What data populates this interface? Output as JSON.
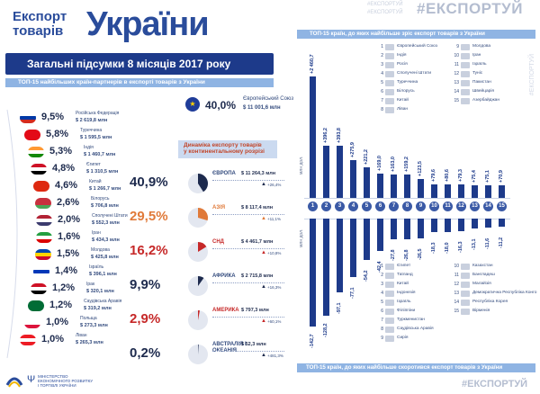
{
  "header": {
    "line1": "Експорт",
    "line2": "товарів",
    "title": "України"
  },
  "hashtag": {
    "faint1": "#ЕКСПОРТУЙ",
    "faint2": "#ЕКСПОРТУЙ",
    "main": "#ЕКСПОРТУЙ",
    "bottom": "#ЕКСПОРТУЙ",
    "vertical": "#ЕКСПОРТУЙ"
  },
  "summary_banner": "Загальні підсумки 8 місяців 2017 року",
  "top15_partners_title": "ТОП-15 найбільших країн-партнерів в експорті товарів з України",
  "eu": {
    "pct": "40,0%",
    "name": "Європейський Союз",
    "amount": "$ 11 001,6 млн"
  },
  "partners": [
    {
      "pct": "9,5%",
      "name": "Російська Федерація",
      "amount": "$ 2 619,8 млн",
      "c1": "#ffffff",
      "c2": "#0039a6",
      "c3": "#d52b1e"
    },
    {
      "pct": "5,8%",
      "name": "Туреччина",
      "amount": "$ 1 595,5 млн",
      "c1": "#e30a17",
      "c2": "#e30a17",
      "c3": "#e30a17"
    },
    {
      "pct": "5,3%",
      "name": "Індія",
      "amount": "$ 1 460,7 млн",
      "c1": "#ff9933",
      "c2": "#ffffff",
      "c3": "#138808"
    },
    {
      "pct": "4,8%",
      "name": "Єгипет",
      "amount": "$ 1 310,5 млн",
      "c1": "#ce1126",
      "c2": "#ffffff",
      "c3": "#000000"
    },
    {
      "pct": "4,6%",
      "name": "Китай",
      "amount": "$ 1 266,7 млн",
      "c1": "#de2910",
      "c2": "#de2910",
      "c3": "#de2910"
    },
    {
      "pct": "2,6%",
      "name": "Білорусь",
      "amount": "$ 706,8 млн",
      "c1": "#c8313e",
      "c2": "#c8313e",
      "c3": "#4aa657"
    },
    {
      "pct": "2,0%",
      "name": "Сполучені Штати",
      "amount": "$ 552,3 млн",
      "c1": "#b22234",
      "c2": "#ffffff",
      "c3": "#3c3b6e"
    },
    {
      "pct": "1,6%",
      "name": "Іран",
      "amount": "$ 434,3 млн",
      "c1": "#239f40",
      "c2": "#ffffff",
      "c3": "#da0000"
    },
    {
      "pct": "1,5%",
      "name": "Молдова",
      "amount": "$ 425,8 млн",
      "c1": "#0046ae",
      "c2": "#ffd200",
      "c3": "#cc092f"
    },
    {
      "pct": "1,4%",
      "name": "Ізраїль",
      "amount": "$ 396,1 млн",
      "c1": "#ffffff",
      "c2": "#0038b8",
      "c3": "#ffffff"
    },
    {
      "pct": "1,2%",
      "name": "Ірак",
      "amount": "$ 320,1 млн",
      "c1": "#ce1126",
      "c2": "#ffffff",
      "c3": "#000000"
    },
    {
      "pct": "1,2%",
      "name": "Саудівська Аравія",
      "amount": "$ 319,2 млн",
      "c1": "#006c35",
      "c2": "#006c35",
      "c3": "#006c35"
    },
    {
      "pct": "1,0%",
      "name": "Польща",
      "amount": "$ 273,3 млн",
      "c1": "#ffffff",
      "c2": "#ffffff",
      "c3": "#dc143c"
    },
    {
      "pct": "1,0%",
      "name": "Ліван",
      "amount": "$ 265,3 млн",
      "c1": "#ed1c24",
      "c2": "#ffffff",
      "c3": "#ed1c24"
    }
  ],
  "dynamics": {
    "title1": "Динаміка експорту товарів",
    "title2": "у континентальному розрізі",
    "rows": [
      {
        "pct": "40,9%",
        "name": "ЄВРОПА",
        "amount": "$ 11 264,3 млн",
        "growth": "+26,4%",
        "color": "#1d2a4d",
        "share": 0.409
      },
      {
        "pct": "29,5%",
        "name": "АЗІЯ",
        "amount": "$ 8 117,4 млн",
        "growth": "+11,1%",
        "color": "#e07a3a",
        "share": 0.295
      },
      {
        "pct": "16,2%",
        "name": "СНД",
        "amount": "$ 4 461,7 млн",
        "growth": "+10,8%",
        "color": "#c62828",
        "share": 0.162
      },
      {
        "pct": "9,9%",
        "name": "АФРИКА",
        "amount": "$ 2 715,8 млн",
        "growth": "+16,3%",
        "color": "#1d2a4d",
        "share": 0.099
      },
      {
        "pct": "2,9%",
        "name": "АМЕРИКА",
        "amount": "$ 797,3 млн",
        "growth": "+60,1%",
        "color": "#c62828",
        "share": 0.029
      },
      {
        "pct": "0,2%",
        "name": "АВСТРАЛІЯ І ОКЕАНІЯ",
        "amount": "$ 52,3 млн",
        "growth": "+481,3%",
        "color": "#1d2a4d",
        "share": 0.002
      }
    ]
  },
  "growth_title": "ТОП-15 країн, до яких найбільше зріс експорт товарів з України",
  "decline_title": "ТОП-15 країн, до яких найбільше скоротився експорт товарів з України",
  "axis_label_up": "млн дол.",
  "axis_label_down": "млн дол.",
  "growth_countries": [
    {
      "n": "1",
      "name": "Європейський Союз"
    },
    {
      "n": "2",
      "name": "Індія"
    },
    {
      "n": "3",
      "name": "Росія"
    },
    {
      "n": "4",
      "name": "Сполучені Штати"
    },
    {
      "n": "5",
      "name": "Туреччина"
    },
    {
      "n": "6",
      "name": "Білорусь"
    },
    {
      "n": "7",
      "name": "Китай"
    },
    {
      "n": "8",
      "name": "Ліван"
    },
    {
      "n": "9",
      "name": "Молдова"
    },
    {
      "n": "10",
      "name": "Іран"
    },
    {
      "n": "11",
      "name": "Ізраїль"
    },
    {
      "n": "12",
      "name": "Туніс"
    },
    {
      "n": "13",
      "name": "Пакистан"
    },
    {
      "n": "14",
      "name": "Швейцарія"
    },
    {
      "n": "15",
      "name": "Азербайджан"
    }
  ],
  "decline_countries": [
    {
      "n": "1",
      "name": "Єгипет"
    },
    {
      "n": "2",
      "name": "Таїланд"
    },
    {
      "n": "3",
      "name": "Китай"
    },
    {
      "n": "4",
      "name": "Індонезія"
    },
    {
      "n": "5",
      "name": "Ізраїль"
    },
    {
      "n": "6",
      "name": "Філіппіни"
    },
    {
      "n": "7",
      "name": "Туркменистан"
    },
    {
      "n": "8",
      "name": "Саудівська Аравія"
    },
    {
      "n": "9",
      "name": "Сирія"
    },
    {
      "n": "10",
      "name": "Казахстан"
    },
    {
      "n": "11",
      "name": "Бангладеш"
    },
    {
      "n": "12",
      "name": "Малайзія"
    },
    {
      "n": "13",
      "name": "Демократична Республіка Конго"
    },
    {
      "n": "14",
      "name": "Республіка Корея"
    },
    {
      "n": "15",
      "name": "Вірменія"
    }
  ],
  "footer": {
    "org1": "МІНІСТЕРСТВО",
    "org2": "ЕКОНОМІЧНОГО РОЗВИТКУ",
    "org3": "І ТОРГІВЛІ УКРАЇНИ"
  },
  "chart_data": [
    {
      "type": "bar",
      "title": "ТОП-15 країн, до яких найбільше зріс експорт товарів з України",
      "ylabel": "млн дол.",
      "categories": [
        "1",
        "2",
        "3",
        "4",
        "5",
        "6",
        "7",
        "8",
        "9",
        "10",
        "11",
        "12",
        "13",
        "14",
        "15"
      ],
      "values": [
        2460.7,
        396.2,
        393.8,
        275.9,
        221.2,
        169.0,
        163.0,
        159.2,
        123.5,
        79.6,
        80.6,
        79.3,
        75.4,
        75.1,
        70.9
      ],
      "labels": [
        "+2 460,7",
        "+396,2",
        "+393,8",
        "+275,9",
        "+221,2",
        "+169,0",
        "+163,0",
        "+159,2",
        "+123,5",
        "+79,6",
        "+80,6",
        "+79,3",
        "+75,4",
        "+75,1",
        "+70,9"
      ]
    },
    {
      "type": "bar",
      "title": "ТОП-15 країн, до яких найбільше скоротився експорт товарів з України",
      "ylabel": "млн дол.",
      "categories": [
        "1",
        "2",
        "3",
        "4",
        "5",
        "6",
        "7",
        "8",
        "9",
        "10",
        "11",
        "12",
        "13",
        "14",
        "15"
      ],
      "values": [
        -142.7,
        -128.2,
        -97.1,
        -77.1,
        -54.2,
        -42.4,
        -27.8,
        -26.8,
        -26.5,
        -18.3,
        -18.0,
        -16.3,
        -13.1,
        -11.6,
        -11.2
      ],
      "labels": [
        "-142,7",
        "-128,2",
        "-97,1",
        "-77,1",
        "-54,2",
        "-42,4",
        "-27,8",
        "-26,8",
        "-26,5",
        "-18,3",
        "-18,0",
        "-16,3",
        "-13,1",
        "-11,6",
        "-11,2"
      ]
    }
  ]
}
